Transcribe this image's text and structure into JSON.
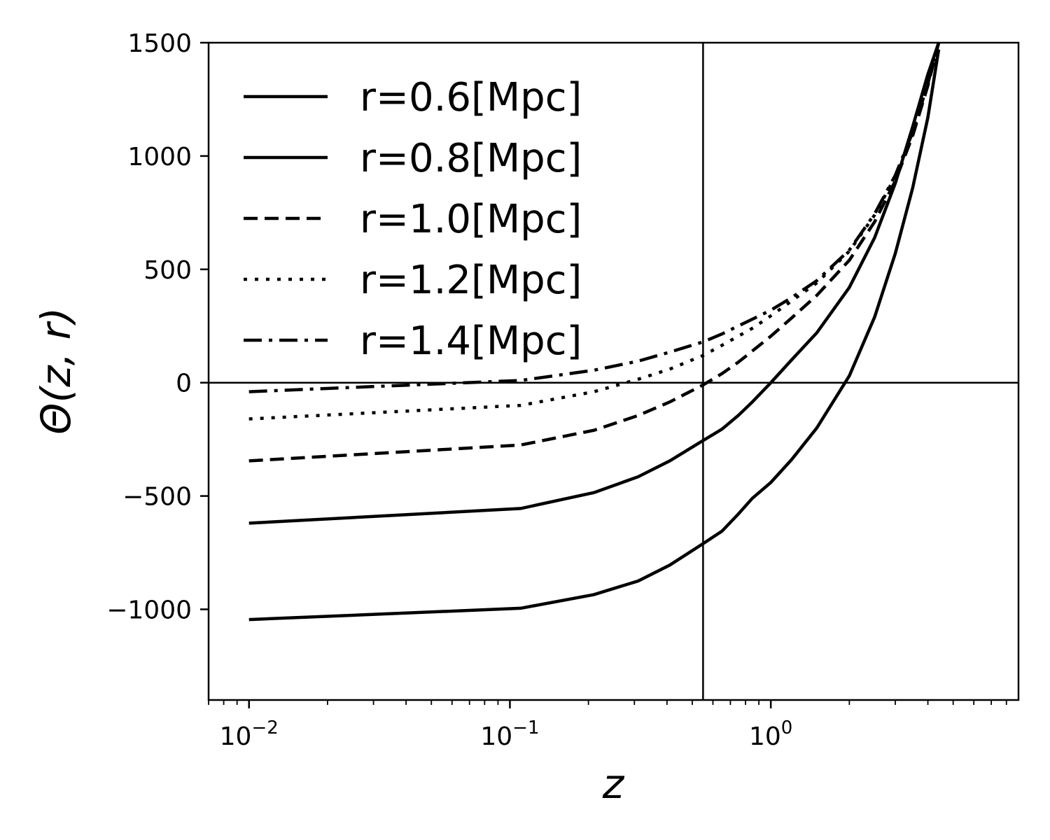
{
  "chart_data": {
    "type": "line",
    "title": "",
    "xlabel": "z",
    "ylabel": "Θ(z, r)",
    "xscale": "log",
    "xlim": [
      0.007,
      8.9
    ],
    "ylim": [
      -1400,
      1500
    ],
    "grid": false,
    "legend_position": "top-left",
    "x_ticks": [
      {
        "value": 0.01,
        "base": "10",
        "exp": "−2"
      },
      {
        "value": 0.1,
        "base": "10",
        "exp": "−1"
      },
      {
        "value": 1,
        "base": "10",
        "exp": "0"
      }
    ],
    "y_ticks": [
      {
        "value": 1500,
        "label": "1500"
      },
      {
        "value": 1000,
        "label": "1000"
      },
      {
        "value": 500,
        "label": "500"
      },
      {
        "value": 0,
        "label": "0"
      },
      {
        "value": -500,
        "label": "−500"
      },
      {
        "value": -1000,
        "label": "−1000"
      }
    ],
    "reference_lines": {
      "vertical_x": 0.55,
      "horizontal_y": 0
    },
    "series": [
      {
        "name": "r=0.6[Mpc]",
        "style": "solid",
        "x": [
          0.01,
          0.11,
          0.21,
          0.31,
          0.41,
          0.55,
          0.65,
          0.75,
          0.85,
          1.0,
          1.2,
          1.5,
          2.0,
          2.5,
          3.0,
          3.5,
          4.0,
          4.4
        ],
        "y": [
          -1045,
          -995,
          -935,
          -875,
          -805,
          -710,
          -655,
          -580,
          -510,
          -440,
          -340,
          -200,
          30,
          290,
          570,
          860,
          1170,
          1470
        ]
      },
      {
        "name": "r=0.8[Mpc]",
        "style": "solid",
        "x": [
          0.01,
          0.11,
          0.21,
          0.31,
          0.41,
          0.55,
          0.65,
          0.75,
          0.85,
          1.0,
          1.2,
          1.5,
          2.0,
          2.5,
          3.0,
          3.5,
          4.0,
          4.4
        ],
        "y": [
          -620,
          -555,
          -485,
          -415,
          -345,
          -255,
          -205,
          -145,
          -85,
          0,
          100,
          220,
          420,
          640,
          880,
          1130,
          1360,
          1500
        ]
      },
      {
        "name": "r=1.0[Mpc]",
        "style": "dashed",
        "x": [
          0.01,
          0.11,
          0.21,
          0.31,
          0.41,
          0.55,
          0.65,
          0.75,
          0.85,
          1.0,
          1.2,
          1.5,
          2.0,
          2.5,
          3.0,
          3.5,
          4.0,
          4.4
        ],
        "y": [
          -345,
          -275,
          -210,
          -145,
          -85,
          -10,
          40,
          90,
          140,
          205,
          285,
          385,
          540,
          710,
          890,
          1090,
          1310,
          1500
        ]
      },
      {
        "name": "r=1.2[Mpc]",
        "style": "dotted",
        "x": [
          0.01,
          0.11,
          0.21,
          0.31,
          0.41,
          0.55,
          0.65,
          0.75,
          0.85,
          1.0,
          1.2,
          1.5,
          2.0,
          2.5,
          3.0,
          3.5,
          4.0,
          4.4
        ],
        "y": [
          -160,
          -100,
          -40,
          15,
          60,
          120,
          165,
          205,
          240,
          295,
          360,
          440,
          580,
          740,
          910,
          1100,
          1320,
          1500
        ]
      },
      {
        "name": "r=1.4[Mpc]",
        "style": "dashdot",
        "x": [
          0.01,
          0.11,
          0.21,
          0.31,
          0.41,
          0.55,
          0.65,
          0.75,
          0.85,
          1.0,
          1.2,
          1.5,
          2.0,
          2.5,
          3.0,
          3.5,
          4.0,
          4.4
        ],
        "y": [
          -40,
          10,
          55,
          95,
          135,
          180,
          215,
          250,
          280,
          320,
          375,
          450,
          585,
          745,
          915,
          1105,
          1320,
          1500
        ]
      }
    ]
  }
}
